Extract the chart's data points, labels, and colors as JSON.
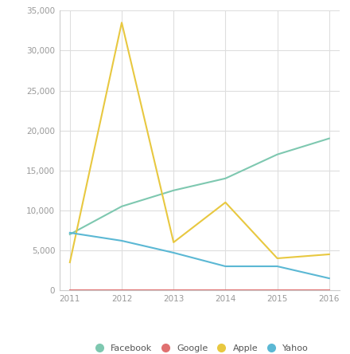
{
  "years": [
    2011,
    2012,
    2013,
    2014,
    2015,
    2016
  ],
  "facebook": [
    7000,
    10500,
    12500,
    14000,
    17000,
    19000
  ],
  "google": [
    50,
    50,
    50,
    50,
    50,
    50
  ],
  "apple": [
    3500,
    33500,
    6000,
    11000,
    4000,
    4500
  ],
  "yahoo": [
    7200,
    6200,
    4700,
    3000,
    3000,
    1500
  ],
  "facebook_color": "#7ec8b0",
  "google_color": "#e07070",
  "apple_color": "#e8c840",
  "yahoo_color": "#5bb8d4",
  "ylim": [
    0,
    35000
  ],
  "yticks": [
    0,
    5000,
    10000,
    15000,
    20000,
    25000,
    30000,
    35000
  ],
  "background_color": "#ffffff",
  "grid_color": "#dedede",
  "legend_labels": [
    "Facebook",
    "Google",
    "Apple",
    "Yahoo"
  ]
}
